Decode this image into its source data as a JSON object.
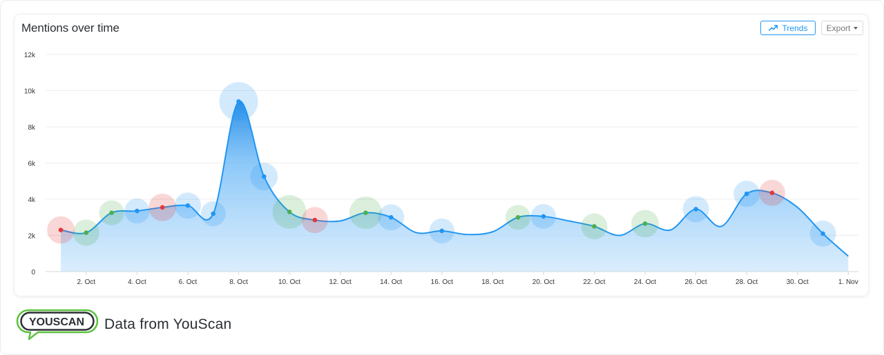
{
  "card": {
    "title": "Mentions over time",
    "trends_label": "Trends",
    "trends_icon": "trend-line-icon",
    "export_label": "Export",
    "export_icon": "caret-down-icon"
  },
  "footer": {
    "logo_text": "YOUSCAN",
    "text": "Data from YouScan"
  },
  "colors": {
    "line": "#2196f3",
    "positive": "#4caf50",
    "negative": "#e53935",
    "neutral": "#2196f3",
    "logo_green": "#5cc23f",
    "logo_dark": "#2b2f33"
  },
  "chart_data": {
    "type": "area",
    "title": "Mentions over time",
    "xlabel": "",
    "ylabel": "",
    "ylim": [
      0,
      12000
    ],
    "yticks": [
      {
        "value": 0,
        "label": "0"
      },
      {
        "value": 2000,
        "label": "2k"
      },
      {
        "value": 4000,
        "label": "4k"
      },
      {
        "value": 6000,
        "label": "6k"
      },
      {
        "value": 8000,
        "label": "8k"
      },
      {
        "value": 10000,
        "label": "10k"
      },
      {
        "value": 12000,
        "label": "12k"
      }
    ],
    "xticks": [
      {
        "day": 2,
        "label": "2. Oct"
      },
      {
        "day": 4,
        "label": "4. Oct"
      },
      {
        "day": 6,
        "label": "6. Oct"
      },
      {
        "day": 8,
        "label": "8. Oct"
      },
      {
        "day": 10,
        "label": "10. Oct"
      },
      {
        "day": 12,
        "label": "12. Oct"
      },
      {
        "day": 14,
        "label": "14. Oct"
      },
      {
        "day": 16,
        "label": "16. Oct"
      },
      {
        "day": 18,
        "label": "18. Oct"
      },
      {
        "day": 20,
        "label": "20. Oct"
      },
      {
        "day": 22,
        "label": "22. Oct"
      },
      {
        "day": 24,
        "label": "24. Oct"
      },
      {
        "day": 26,
        "label": "26. Oct"
      },
      {
        "day": 28,
        "label": "28. Oct"
      },
      {
        "day": 30,
        "label": "30. Oct"
      },
      {
        "day": 32,
        "label": "1. Nov"
      }
    ],
    "series": [
      {
        "points": [
          {
            "day": 1,
            "value": 2300,
            "sentiment": "negative",
            "bubble": 0.55
          },
          {
            "day": 2,
            "value": 2150,
            "sentiment": "positive",
            "bubble": 0.5
          },
          {
            "day": 3,
            "value": 3250,
            "sentiment": "positive",
            "bubble": 0.45
          },
          {
            "day": 4,
            "value": 3350,
            "sentiment": "neutral",
            "bubble": 0.45
          },
          {
            "day": 5,
            "value": 3550,
            "sentiment": "negative",
            "bubble": 0.55
          },
          {
            "day": 6,
            "value": 3650,
            "sentiment": "neutral",
            "bubble": 0.5
          },
          {
            "day": 7,
            "value": 3200,
            "sentiment": "neutral",
            "bubble": 0.45
          },
          {
            "day": 8,
            "value": 9400,
            "sentiment": "neutral",
            "bubble": 1.0
          },
          {
            "day": 9,
            "value": 5250,
            "sentiment": "neutral",
            "bubble": 0.55
          },
          {
            "day": 10,
            "value": 3300,
            "sentiment": "positive",
            "bubble": 0.8
          },
          {
            "day": 11,
            "value": 2850,
            "sentiment": "negative",
            "bubble": 0.5
          },
          {
            "day": 12,
            "value": 2800,
            "sentiment": null,
            "bubble": 0
          },
          {
            "day": 13,
            "value": 3250,
            "sentiment": "positive",
            "bubble": 0.75
          },
          {
            "day": 14,
            "value": 3000,
            "sentiment": "neutral",
            "bubble": 0.5
          },
          {
            "day": 15,
            "value": 2150,
            "sentiment": null,
            "bubble": 0
          },
          {
            "day": 16,
            "value": 2250,
            "sentiment": "neutral",
            "bubble": 0.45
          },
          {
            "day": 17,
            "value": 2050,
            "sentiment": null,
            "bubble": 0
          },
          {
            "day": 18,
            "value": 2200,
            "sentiment": null,
            "bubble": 0
          },
          {
            "day": 19,
            "value": 3000,
            "sentiment": "positive",
            "bubble": 0.45
          },
          {
            "day": 20,
            "value": 3050,
            "sentiment": "neutral",
            "bubble": 0.45
          },
          {
            "day": 21,
            "value": 2800,
            "sentiment": null,
            "bubble": 0
          },
          {
            "day": 22,
            "value": 2500,
            "sentiment": "positive",
            "bubble": 0.5
          },
          {
            "day": 23,
            "value": 2000,
            "sentiment": null,
            "bubble": 0
          },
          {
            "day": 24,
            "value": 2650,
            "sentiment": "positive",
            "bubble": 0.55
          },
          {
            "day": 25,
            "value": 2300,
            "sentiment": null,
            "bubble": 0
          },
          {
            "day": 26,
            "value": 3450,
            "sentiment": "neutral",
            "bubble": 0.5
          },
          {
            "day": 27,
            "value": 2500,
            "sentiment": null,
            "bubble": 0
          },
          {
            "day": 28,
            "value": 4300,
            "sentiment": "neutral",
            "bubble": 0.5
          },
          {
            "day": 29,
            "value": 4350,
            "sentiment": "negative",
            "bubble": 0.5
          },
          {
            "day": 30,
            "value": 3550,
            "sentiment": null,
            "bubble": 0
          },
          {
            "day": 31,
            "value": 2100,
            "sentiment": "neutral",
            "bubble": 0.5
          },
          {
            "day": 32,
            "value": 850,
            "sentiment": null,
            "bubble": 0
          }
        ]
      }
    ],
    "grid": true,
    "legend": "none"
  }
}
